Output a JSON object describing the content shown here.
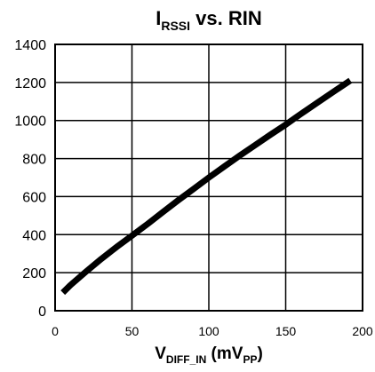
{
  "chart_data": {
    "type": "line",
    "title": {
      "main": "I",
      "sub": "RSSI",
      "rest": " vs. RIN"
    },
    "xlabel": {
      "main": "V",
      "sub1": "DIFF_IN",
      "mid": " (mV",
      "sub2": "PP",
      "end": ")"
    },
    "ylabel": "",
    "xlim": [
      0,
      200
    ],
    "ylim": [
      0,
      1400
    ],
    "xticks": [
      0,
      50,
      100,
      150,
      200
    ],
    "yticks": [
      0,
      200,
      400,
      600,
      800,
      1000,
      1200,
      1400
    ],
    "grid": true,
    "series": [
      {
        "x": [
          5,
          10,
          20,
          30,
          40,
          50,
          60,
          70,
          80,
          90,
          100,
          110,
          120,
          130,
          140,
          150,
          160,
          170,
          180,
          192
        ],
        "values": [
          95,
          135,
          205,
          272,
          335,
          395,
          455,
          518,
          580,
          640,
          700,
          758,
          815,
          870,
          925,
          978,
          1035,
          1090,
          1145,
          1210
        ],
        "color": "#000000"
      }
    ]
  }
}
